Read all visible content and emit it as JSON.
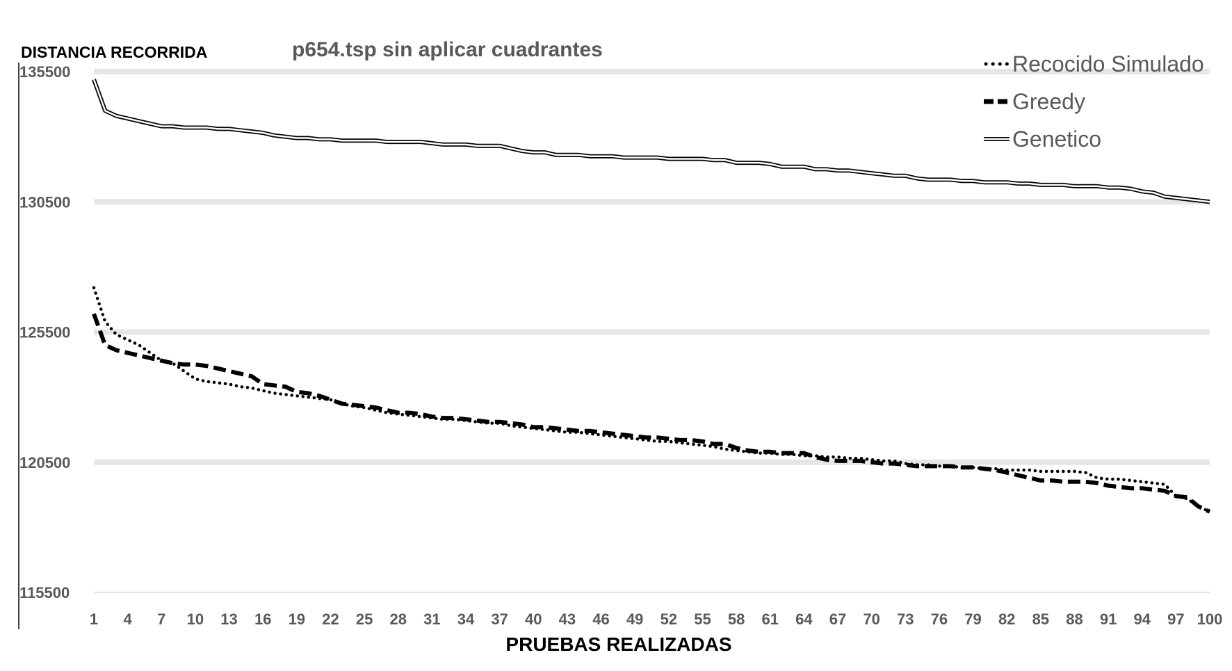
{
  "chart_data": {
    "type": "line",
    "title": "p654.tsp sin aplicar cuadrantes",
    "ylabel": "DISTANCIA RECORRIDA",
    "xlabel": "PRUEBAS REALIZADAS",
    "ylim": [
      115500,
      135500
    ],
    "yticks": [
      "135500",
      "130500",
      "125500",
      "120500",
      "115500"
    ],
    "xticks": [
      "1",
      "4",
      "7",
      "10",
      "13",
      "16",
      "19",
      "22",
      "25",
      "28",
      "31",
      "34",
      "37",
      "40",
      "43",
      "46",
      "49",
      "52",
      "55",
      "58",
      "61",
      "64",
      "67",
      "70",
      "73",
      "76",
      "79",
      "82",
      "85",
      "88",
      "91",
      "94",
      "97",
      "100"
    ],
    "grid": true,
    "legend_position": "top-right",
    "x": [
      1,
      2,
      3,
      4,
      5,
      6,
      7,
      8,
      9,
      10,
      11,
      12,
      13,
      14,
      15,
      16,
      17,
      18,
      19,
      20,
      21,
      22,
      23,
      24,
      25,
      26,
      27,
      28,
      29,
      30,
      31,
      32,
      33,
      34,
      35,
      36,
      37,
      38,
      39,
      40,
      41,
      42,
      43,
      44,
      45,
      46,
      47,
      48,
      49,
      50,
      51,
      52,
      53,
      54,
      55,
      56,
      57,
      58,
      59,
      60,
      61,
      62,
      63,
      64,
      65,
      66,
      67,
      68,
      69,
      70,
      71,
      72,
      73,
      74,
      75,
      76,
      77,
      78,
      79,
      80,
      81,
      82,
      83,
      84,
      85,
      86,
      87,
      88,
      89,
      90,
      91,
      92,
      93,
      94,
      95,
      96,
      97,
      98,
      99,
      100
    ],
    "series": [
      {
        "name": "Recocido Simulado",
        "style": "dotted",
        "color": "#000000",
        "values": [
          127200,
          125900,
          125400,
          125200,
          125000,
          124700,
          124400,
          124300,
          124000,
          123700,
          123600,
          123550,
          123500,
          123400,
          123350,
          123250,
          123150,
          123100,
          123050,
          123000,
          122950,
          122900,
          122750,
          122650,
          122600,
          122500,
          122400,
          122350,
          122300,
          122250,
          122200,
          122150,
          122150,
          122100,
          122050,
          122000,
          122000,
          121900,
          121850,
          121800,
          121750,
          121700,
          121650,
          121650,
          121600,
          121550,
          121500,
          121450,
          121400,
          121350,
          121300,
          121300,
          121250,
          121200,
          121150,
          121100,
          121000,
          120950,
          120900,
          120850,
          120850,
          120800,
          120800,
          120750,
          120750,
          120700,
          120700,
          120650,
          120650,
          120600,
          120550,
          120550,
          120450,
          120400,
          120400,
          120350,
          120350,
          120300,
          120300,
          120250,
          120250,
          120200,
          120200,
          120200,
          120150,
          120150,
          120150,
          120150,
          120100,
          119900,
          119850,
          119850,
          119800,
          119750,
          119700,
          119650,
          119200,
          119100,
          118800,
          118600
        ]
      },
      {
        "name": "Greedy",
        "style": "dashed",
        "color": "#000000",
        "values": [
          126200,
          125000,
          124800,
          124700,
          124600,
          124500,
          124400,
          124300,
          124250,
          124250,
          124200,
          124100,
          124000,
          123900,
          123800,
          123500,
          123450,
          123400,
          123200,
          123150,
          123050,
          122900,
          122750,
          122700,
          122650,
          122600,
          122500,
          122400,
          122400,
          122350,
          122250,
          122200,
          122200,
          122150,
          122100,
          122050,
          122050,
          122000,
          121950,
          121850,
          121850,
          121800,
          121750,
          121700,
          121700,
          121650,
          121600,
          121550,
          121500,
          121450,
          121450,
          121400,
          121350,
          121350,
          121300,
          121200,
          121200,
          121050,
          120950,
          120900,
          120900,
          120850,
          120850,
          120850,
          120700,
          120600,
          120550,
          120550,
          120550,
          120500,
          120450,
          120450,
          120400,
          120350,
          120350,
          120350,
          120350,
          120300,
          120300,
          120250,
          120200,
          120100,
          120000,
          119900,
          119800,
          119800,
          119750,
          119750,
          119750,
          119700,
          119600,
          119550,
          119500,
          119500,
          119450,
          119400,
          119200,
          119150,
          118800,
          118600
        ]
      },
      {
        "name": "Genetico",
        "style": "double",
        "color": "#000000",
        "values": [
          135200,
          134000,
          133800,
          133700,
          133600,
          133500,
          133400,
          133400,
          133350,
          133350,
          133350,
          133300,
          133300,
          133250,
          133200,
          133150,
          133050,
          133000,
          132950,
          132950,
          132900,
          132900,
          132850,
          132850,
          132850,
          132850,
          132800,
          132800,
          132800,
          132800,
          132750,
          132700,
          132700,
          132700,
          132650,
          132650,
          132650,
          132550,
          132450,
          132400,
          132400,
          132300,
          132300,
          132300,
          132250,
          132250,
          132250,
          132200,
          132200,
          132200,
          132200,
          132150,
          132150,
          132150,
          132150,
          132100,
          132100,
          132000,
          132000,
          132000,
          131950,
          131850,
          131850,
          131850,
          131750,
          131750,
          131700,
          131700,
          131650,
          131600,
          131550,
          131500,
          131500,
          131400,
          131350,
          131350,
          131350,
          131300,
          131300,
          131250,
          131250,
          131250,
          131200,
          131200,
          131150,
          131150,
          131150,
          131100,
          131100,
          131100,
          131050,
          131050,
          131000,
          130900,
          130850,
          130700,
          130650,
          130600,
          130550,
          130500
        ]
      }
    ]
  }
}
